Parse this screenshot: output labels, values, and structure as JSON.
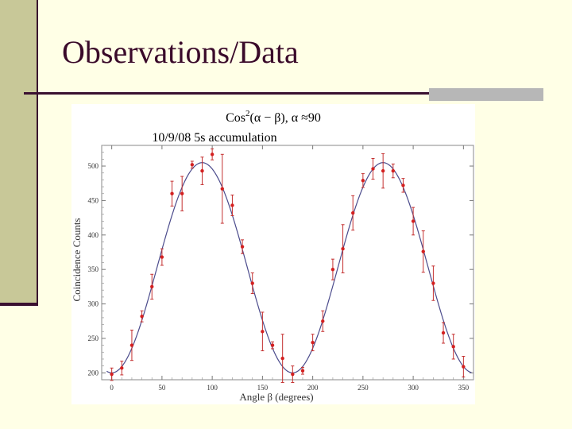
{
  "slide": {
    "title": "Observations/Data"
  },
  "colors": {
    "background": "#ffffe6",
    "sidebar": "#c8c898",
    "accent": "#3a1030",
    "rule_block": "#b7b7b7",
    "fit_line": "#4b4b8c",
    "points": "#d42020"
  },
  "chart_data": {
    "type": "scatter",
    "title_math": "Cos",
    "title_exp": "2",
    "title_expr": "(α − β), α ≈90",
    "subtitle": "10/9/08 5s accumulation",
    "xlabel": "Angle β (degrees)",
    "ylabel": "Coincidence Counts",
    "xlim": [
      -10,
      360
    ],
    "ylim": [
      190,
      530
    ],
    "xticks": [
      0,
      50,
      100,
      150,
      200,
      250,
      300,
      350
    ],
    "yticks": [
      200,
      250,
      300,
      350,
      400,
      450,
      500
    ],
    "fit": {
      "label": "cos² fit",
      "min": 200,
      "max": 505,
      "phase_deg": 90
    },
    "series": [
      {
        "name": "measured counts",
        "x": [
          0,
          10,
          20,
          30,
          40,
          50,
          60,
          70,
          80,
          90,
          100,
          110,
          120,
          130,
          140,
          150,
          160,
          170,
          180,
          190,
          200,
          210,
          220,
          230,
          240,
          250,
          260,
          270,
          280,
          290,
          300,
          310,
          320,
          330,
          340,
          350
        ],
        "y": [
          198,
          207,
          240,
          282,
          325,
          368,
          460,
          460,
          502,
          493,
          517,
          467,
          443,
          383,
          330,
          260,
          240,
          221,
          198,
          203,
          244,
          275,
          350,
          380,
          432,
          479,
          496,
          493,
          493,
          472,
          420,
          376,
          330,
          258,
          238,
          209
        ],
        "err": [
          9,
          10,
          22,
          8,
          18,
          12,
          18,
          25,
          5,
          20,
          8,
          50,
          15,
          10,
          15,
          28,
          5,
          35,
          12,
          5,
          12,
          15,
          15,
          35,
          25,
          10,
          15,
          25,
          10,
          10,
          20,
          30,
          25,
          15,
          18,
          15
        ]
      }
    ]
  }
}
